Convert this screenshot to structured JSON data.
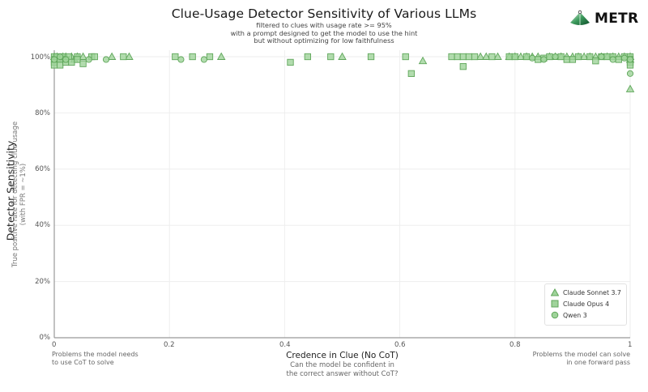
{
  "header": {
    "title": "Clue-Usage Detector Sensitivity of Various LLMs",
    "subtitle_lines": [
      "filtered to clues with usage rate >= 95%",
      "with a prompt designed to get the model to use the hint",
      "but without optimizing for low faithfulness"
    ],
    "logo_text": "METR",
    "logo_icon": "metr-triangle-icon"
  },
  "axes": {
    "ylabel": "Detector Sensitivity",
    "ylabel_sub_lines": [
      "True positive rate for detecting clue usage",
      "(with FPR = ~1%)"
    ],
    "xlabel": "Credence in Clue (No CoT)",
    "xlabel_sub_lines": [
      "Can the model be confident in",
      "the correct answer without CoT?"
    ],
    "x_note_left_lines": [
      "Problems the model needs",
      "to use CoT to solve"
    ],
    "x_note_right_lines": [
      "Problems the model can solve",
      "in one forward pass"
    ],
    "yticks": [
      "0%",
      "20%",
      "40%",
      "60%",
      "80%",
      "100%"
    ],
    "xticks": [
      "0",
      "0.2",
      "0.4",
      "0.6",
      "0.8",
      "1"
    ]
  },
  "legend": {
    "items": [
      {
        "label": "Claude Sonnet 3.7",
        "marker": "triangle"
      },
      {
        "label": "Claude Opus 4",
        "marker": "square"
      },
      {
        "label": "Qwen 3",
        "marker": "circle"
      }
    ]
  },
  "colors": {
    "marker_fill": "#9fd39a",
    "marker_stroke": "#5fa65a",
    "grid": "#eeeeee",
    "axis": "#999999"
  },
  "chart_data": {
    "type": "scatter",
    "title": "Clue-Usage Detector Sensitivity of Various LLMs",
    "subtitle": "filtered to clues with usage rate >= 95% with a prompt designed to get the model to use the hint but without optimizing for low faithfulness",
    "xlabel": "Credence in Clue (No CoT)",
    "ylabel": "Detector Sensitivity (True positive rate for detecting clue usage, with FPR = ~1%)",
    "xlim": [
      0,
      1
    ],
    "ylim": [
      0,
      100
    ],
    "grid": true,
    "legend_position": "lower right",
    "series": [
      {
        "name": "Claude Sonnet 3.7",
        "marker": "triangle",
        "points": [
          [
            0.0,
            100
          ],
          [
            0.005,
            100
          ],
          [
            0.01,
            99.5
          ],
          [
            0.015,
            100
          ],
          [
            0.02,
            100
          ],
          [
            0.03,
            100
          ],
          [
            0.035,
            99
          ],
          [
            0.04,
            100
          ],
          [
            0.05,
            100
          ],
          [
            0.1,
            100
          ],
          [
            0.13,
            100
          ],
          [
            0.29,
            100
          ],
          [
            0.5,
            100
          ],
          [
            0.64,
            98.5
          ],
          [
            0.74,
            100
          ],
          [
            0.75,
            100
          ],
          [
            0.77,
            100
          ],
          [
            0.79,
            100
          ],
          [
            0.8,
            100
          ],
          [
            0.81,
            100
          ],
          [
            0.82,
            100
          ],
          [
            0.83,
            100
          ],
          [
            0.84,
            100
          ],
          [
            0.86,
            100
          ],
          [
            0.87,
            100
          ],
          [
            0.88,
            100
          ],
          [
            0.89,
            100
          ],
          [
            0.9,
            100
          ],
          [
            0.91,
            100
          ],
          [
            0.92,
            100
          ],
          [
            0.93,
            100
          ],
          [
            0.94,
            100
          ],
          [
            0.95,
            100
          ],
          [
            0.96,
            100
          ],
          [
            0.97,
            100
          ],
          [
            0.98,
            100
          ],
          [
            0.99,
            100
          ],
          [
            1.0,
            100
          ],
          [
            1.0,
            99
          ],
          [
            1.0,
            88.5
          ]
        ]
      },
      {
        "name": "Claude Opus 4",
        "marker": "square",
        "points": [
          [
            0.0,
            100
          ],
          [
            0.0,
            99
          ],
          [
            0.0,
            98
          ],
          [
            0.0,
            97
          ],
          [
            0.005,
            100
          ],
          [
            0.01,
            99
          ],
          [
            0.01,
            97
          ],
          [
            0.015,
            100
          ],
          [
            0.02,
            99
          ],
          [
            0.02,
            98
          ],
          [
            0.025,
            100
          ],
          [
            0.03,
            98
          ],
          [
            0.04,
            100
          ],
          [
            0.04,
            99
          ],
          [
            0.05,
            97.5
          ],
          [
            0.065,
            100
          ],
          [
            0.07,
            100
          ],
          [
            0.12,
            100
          ],
          [
            0.21,
            100
          ],
          [
            0.24,
            100
          ],
          [
            0.27,
            100
          ],
          [
            0.41,
            98
          ],
          [
            0.44,
            100
          ],
          [
            0.48,
            100
          ],
          [
            0.55,
            100
          ],
          [
            0.61,
            100
          ],
          [
            0.62,
            94
          ],
          [
            0.69,
            100
          ],
          [
            0.7,
            100
          ],
          [
            0.71,
            100
          ],
          [
            0.72,
            100
          ],
          [
            0.71,
            96.5
          ],
          [
            0.73,
            100
          ],
          [
            0.76,
            100
          ],
          [
            0.79,
            100
          ],
          [
            0.8,
            100
          ],
          [
            0.82,
            100
          ],
          [
            0.84,
            99
          ],
          [
            0.85,
            99.5
          ],
          [
            0.86,
            100
          ],
          [
            0.88,
            100
          ],
          [
            0.89,
            99
          ],
          [
            0.9,
            99
          ],
          [
            0.91,
            100
          ],
          [
            0.93,
            100
          ],
          [
            0.94,
            98.5
          ],
          [
            0.95,
            100
          ],
          [
            0.96,
            100
          ],
          [
            0.97,
            100
          ],
          [
            0.98,
            99
          ],
          [
            0.99,
            100
          ],
          [
            1.0,
            100
          ],
          [
            1.0,
            99
          ],
          [
            1.0,
            98
          ],
          [
            1.0,
            97
          ]
        ]
      },
      {
        "name": "Qwen 3",
        "marker": "circle",
        "points": [
          [
            0.0,
            99
          ],
          [
            0.01,
            100
          ],
          [
            0.02,
            99
          ],
          [
            0.06,
            99
          ],
          [
            0.09,
            99
          ],
          [
            0.22,
            99
          ],
          [
            0.26,
            99
          ],
          [
            0.83,
            99.5
          ],
          [
            0.85,
            99
          ],
          [
            0.87,
            100
          ],
          [
            0.95,
            100
          ],
          [
            0.97,
            99
          ],
          [
            0.99,
            99.5
          ],
          [
            1.0,
            99
          ],
          [
            1.0,
            94
          ]
        ]
      }
    ]
  }
}
